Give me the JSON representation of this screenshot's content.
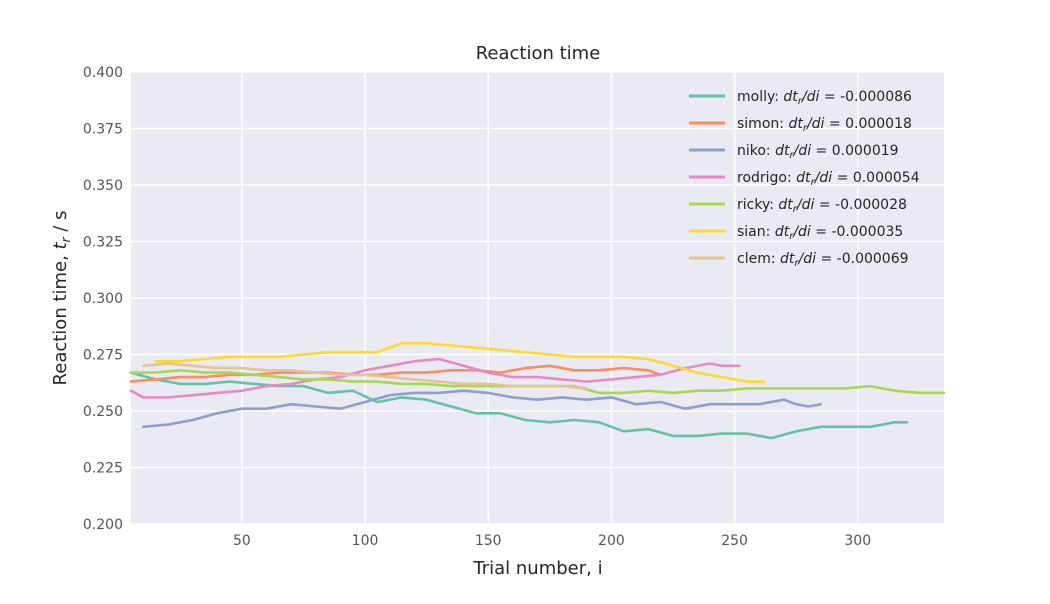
{
  "chart_data": {
    "type": "line",
    "title": "Reaction time",
    "xlabel": "Trial number, i",
    "ylabel_main": "Reaction time, ",
    "ylabel_var": "t",
    "ylabel_sub": "r",
    "ylabel_unit": " / s",
    "xlim": [
      5,
      335
    ],
    "ylim": [
      0.2,
      0.4
    ],
    "xticks": [
      50,
      100,
      150,
      200,
      250,
      300
    ],
    "yticks": [
      0.2,
      0.225,
      0.25,
      0.275,
      0.3,
      0.325,
      0.35,
      0.375,
      0.4
    ],
    "ytick_labels": [
      "0.200",
      "0.225",
      "0.250",
      "0.275",
      "0.300",
      "0.325",
      "0.350",
      "0.375",
      "0.400"
    ],
    "grid": true,
    "legend_position": "top-right",
    "legend_slope_text": "dt",
    "legend_slope_sub": "r",
    "legend_slope_den": "/di",
    "background": "#eaeaf2",
    "series": [
      {
        "name": "molly",
        "slope": "-0.000086",
        "color": "#66c2a5",
        "x": [
          5,
          15,
          25,
          35,
          45,
          55,
          65,
          75,
          85,
          95,
          105,
          115,
          125,
          135,
          145,
          155,
          165,
          175,
          185,
          195,
          205,
          215,
          225,
          235,
          245,
          255,
          265,
          275,
          285,
          295,
          305,
          315,
          320
        ],
        "y": [
          0.267,
          0.264,
          0.262,
          0.262,
          0.263,
          0.262,
          0.261,
          0.261,
          0.258,
          0.259,
          0.254,
          0.256,
          0.255,
          0.252,
          0.249,
          0.249,
          0.246,
          0.245,
          0.246,
          0.245,
          0.241,
          0.242,
          0.239,
          0.239,
          0.24,
          0.24,
          0.238,
          0.241,
          0.243,
          0.243,
          0.243,
          0.245,
          0.245
        ]
      },
      {
        "name": "simon",
        "slope": "0.000018",
        "color": "#fc8d62",
        "x": [
          5,
          15,
          25,
          35,
          45,
          55,
          65,
          75,
          85,
          95,
          105,
          115,
          125,
          135,
          145,
          155,
          165,
          175,
          185,
          195,
          205,
          215,
          220
        ],
        "y": [
          0.263,
          0.264,
          0.265,
          0.265,
          0.266,
          0.266,
          0.267,
          0.267,
          0.267,
          0.266,
          0.266,
          0.267,
          0.267,
          0.268,
          0.268,
          0.267,
          0.269,
          0.27,
          0.268,
          0.268,
          0.269,
          0.268,
          0.266
        ]
      },
      {
        "name": "niko",
        "slope": "0.000019",
        "color": "#8da0cb",
        "x": [
          10,
          20,
          30,
          40,
          50,
          60,
          70,
          80,
          90,
          100,
          110,
          120,
          130,
          140,
          150,
          160,
          170,
          180,
          190,
          200,
          210,
          220,
          230,
          240,
          250,
          260,
          270,
          275,
          280,
          285
        ],
        "y": [
          0.243,
          0.244,
          0.246,
          0.249,
          0.251,
          0.251,
          0.253,
          0.252,
          0.251,
          0.254,
          0.257,
          0.258,
          0.258,
          0.259,
          0.258,
          0.256,
          0.255,
          0.256,
          0.255,
          0.256,
          0.253,
          0.254,
          0.251,
          0.253,
          0.253,
          0.253,
          0.255,
          0.253,
          0.252,
          0.253
        ]
      },
      {
        "name": "rodrigo",
        "slope": "0.000054",
        "color": "#e78ac3",
        "x": [
          5,
          10,
          20,
          30,
          40,
          50,
          60,
          70,
          80,
          90,
          100,
          110,
          120,
          130,
          140,
          150,
          160,
          170,
          180,
          190,
          200,
          210,
          220,
          230,
          240,
          245,
          252
        ],
        "y": [
          0.259,
          0.256,
          0.256,
          0.257,
          0.258,
          0.259,
          0.261,
          0.262,
          0.264,
          0.265,
          0.268,
          0.27,
          0.272,
          0.273,
          0.27,
          0.267,
          0.265,
          0.265,
          0.264,
          0.263,
          0.264,
          0.265,
          0.266,
          0.269,
          0.271,
          0.27,
          0.27
        ]
      },
      {
        "name": "ricky",
        "slope": "-0.000028",
        "color": "#a6d854",
        "x": [
          5,
          15,
          25,
          35,
          45,
          55,
          65,
          75,
          85,
          95,
          105,
          115,
          125,
          135,
          145,
          155,
          165,
          175,
          185,
          195,
          205,
          215,
          225,
          235,
          245,
          255,
          265,
          275,
          285,
          295,
          305,
          315,
          325,
          335
        ],
        "y": [
          0.267,
          0.267,
          0.268,
          0.267,
          0.267,
          0.266,
          0.265,
          0.264,
          0.264,
          0.263,
          0.263,
          0.262,
          0.262,
          0.261,
          0.261,
          0.261,
          0.261,
          0.261,
          0.261,
          0.258,
          0.258,
          0.259,
          0.258,
          0.259,
          0.259,
          0.26,
          0.26,
          0.26,
          0.26,
          0.26,
          0.261,
          0.259,
          0.258,
          0.258
        ]
      },
      {
        "name": "sian",
        "slope": "-0.000035",
        "color": "#ffd92f",
        "x": [
          15,
          25,
          35,
          45,
          55,
          65,
          75,
          85,
          95,
          105,
          115,
          125,
          135,
          145,
          155,
          165,
          175,
          185,
          195,
          205,
          215,
          225,
          235,
          245,
          255,
          262
        ],
        "y": [
          0.272,
          0.272,
          0.273,
          0.274,
          0.274,
          0.274,
          0.275,
          0.276,
          0.276,
          0.276,
          0.28,
          0.28,
          0.279,
          0.278,
          0.277,
          0.276,
          0.275,
          0.274,
          0.274,
          0.274,
          0.273,
          0.27,
          0.267,
          0.265,
          0.263,
          0.263
        ]
      },
      {
        "name": "clem",
        "slope": "-0.000069",
        "color": "#e5c494",
        "x": [
          10,
          20,
          30,
          40,
          50,
          60,
          70,
          80,
          90,
          100,
          110,
          120,
          130,
          140,
          150,
          160,
          170,
          180,
          190
        ],
        "y": [
          0.27,
          0.271,
          0.27,
          0.269,
          0.269,
          0.268,
          0.268,
          0.267,
          0.266,
          0.266,
          0.265,
          0.264,
          0.263,
          0.262,
          0.262,
          0.261,
          0.261,
          0.261,
          0.26
        ]
      }
    ]
  }
}
